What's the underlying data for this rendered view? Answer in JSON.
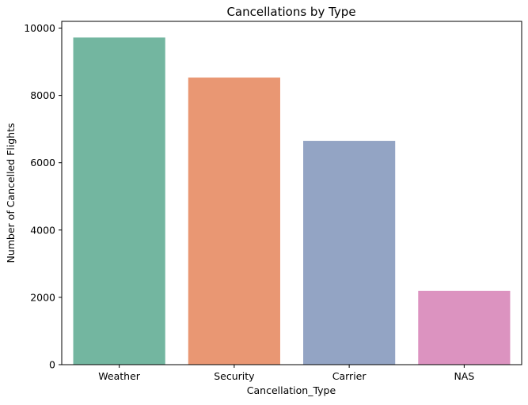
{
  "chart_data": {
    "type": "bar",
    "title": "Cancellations by Type",
    "xlabel": "Cancellation_Type",
    "ylabel": "Number of Cancelled Flights",
    "categories": [
      "Weather",
      "Security",
      "Carrier",
      "NAS"
    ],
    "values": [
      9720,
      8530,
      6650,
      2190
    ],
    "colors": [
      "#73b6a0",
      "#e99773",
      "#93a4c4",
      "#dc93c0"
    ],
    "ylim": [
      0,
      10200
    ],
    "yticks": [
      0,
      2000,
      4000,
      6000,
      8000,
      10000
    ],
    "grid": false,
    "legend": "none"
  }
}
